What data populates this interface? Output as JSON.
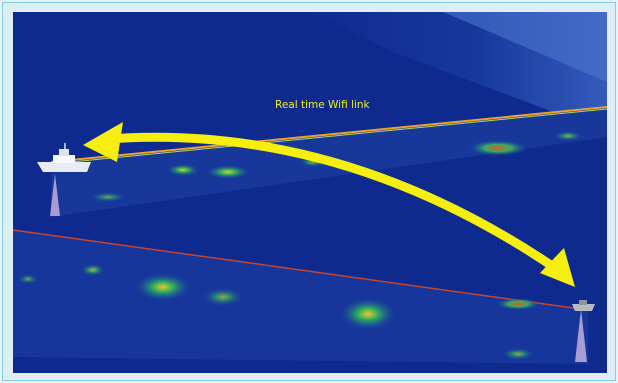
{
  "caption": {
    "text": "Real time Wifi link"
  },
  "colors": {
    "background": "#0f2a8f",
    "arrow": "#f5ee0f",
    "caption": "#f2ee1a",
    "hot": "#e04a2a",
    "mid": "#2ab35a"
  },
  "icons": {
    "vessel_left": "ship-icon",
    "vessel_right": "small-boat-icon",
    "link_arrow": "double-arrow-icon"
  }
}
